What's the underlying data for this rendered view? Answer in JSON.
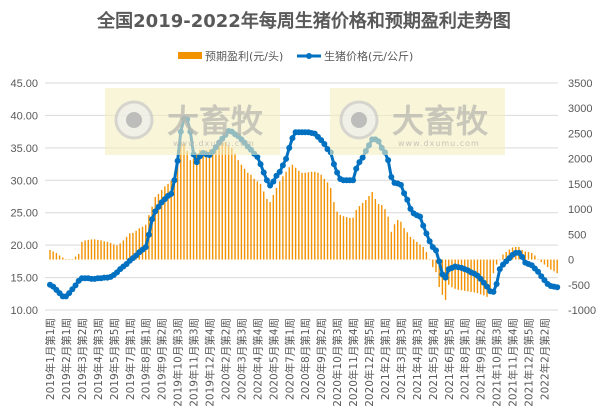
{
  "chart_data": {
    "type": "bar+line",
    "title": "全国2019-2022年每周生猪价格和预期盈利走势图",
    "legend_position": "top",
    "grid": true,
    "colors": {
      "profit_bar": "#F39200",
      "price_line": "#0070C0",
      "watermark_bg": "#F5EFC0"
    },
    "watermark": {
      "logo_text": "大畜牧",
      "url_text": "www.dxumu.com"
    },
    "y_left": {
      "ylim": [
        10,
        45
      ],
      "ticks": [
        "10.00",
        "15.00",
        "20.00",
        "25.00",
        "30.00",
        "35.00",
        "40.00",
        "45.00"
      ]
    },
    "y_right": {
      "ylim": [
        -1000,
        3500
      ],
      "ticks": [
        "-1000",
        "-500",
        "0",
        "500",
        "1000",
        "1500",
        "2000",
        "2500",
        "3000",
        "3500"
      ]
    },
    "x_tick_every": 5,
    "x_tick_labels": [
      "2019年1月第1周",
      "2019年2月第1周",
      "2019年3月第2周",
      "2019年4月第3周",
      "2019年5月第5周",
      "2019年7月第1周",
      "2019年8月第1周",
      "2019年9月第2周",
      "2019年10月第3周",
      "2019年11月第3周",
      "2019年12月第4周",
      "2020年2月第2周",
      "2020年3月第3周",
      "2020年4月第4周",
      "2020年5月第4周",
      "2020年7月第1周",
      "2020年8月第1周",
      "2020年9月第2周",
      "2020年10月第3周",
      "2020年11月第4周",
      "2020年12月第5周",
      "2021年2月第1周",
      "2021年3月第3周",
      "2021年4月第3周",
      "2021年5月第4周",
      "2021年6月第5周",
      "2021年8月第1周",
      "2021年9月第2周",
      "2021年10月第3周",
      "2021年11月第4周",
      "2021年12月第5周",
      "2022年2月第2周"
    ],
    "series": [
      {
        "name": "预期盈利(元/头)",
        "type": "bar",
        "axis": "right",
        "values": [
          190,
          160,
          130,
          80,
          40,
          10,
          10,
          10,
          60,
          110,
          350,
          380,
          390,
          400,
          400,
          390,
          380,
          360,
          350,
          330,
          300,
          280,
          320,
          380,
          450,
          520,
          530,
          570,
          620,
          650,
          690,
          880,
          1050,
          1240,
          1300,
          1380,
          1450,
          1500,
          1560,
          1580,
          2170,
          2410,
          2300,
          2150,
          1970,
          2000,
          2100,
          2170,
          2170,
          2170,
          2180,
          2200,
          2250,
          2310,
          2330,
          2330,
          2250,
          2210,
          2100,
          1970,
          1880,
          1800,
          1720,
          1680,
          1600,
          1550,
          1500,
          1350,
          1200,
          1140,
          1280,
          1420,
          1550,
          1650,
          1740,
          1830,
          1880,
          1820,
          1760,
          1720,
          1720,
          1730,
          1740,
          1740,
          1720,
          1680,
          1600,
          1530,
          1420,
          1140,
          950,
          885,
          860,
          840,
          825,
          830,
          985,
          1060,
          1120,
          1180,
          1260,
          1340,
          1200,
          1100,
          1080,
          1000,
          850,
          550,
          700,
          785,
          750,
          625,
          540,
          450,
          400,
          350,
          300,
          250,
          150,
          0,
          -150,
          -250,
          -545,
          -700,
          -800,
          -500,
          -550,
          -580,
          -600,
          -610,
          -620,
          -630,
          -640,
          -650,
          -665,
          -690,
          -710,
          -740,
          -600,
          -270,
          -100,
          0,
          100,
          150,
          200,
          240,
          250,
          250,
          190,
          160,
          150,
          130,
          80,
          0,
          -50,
          -100,
          -150,
          -200,
          -230,
          -270
        ]
      },
      {
        "name": "生猪价格(元/公斤)",
        "type": "line",
        "axis": "left",
        "values": [
          13.9,
          13.6,
          13.1,
          12.6,
          12.1,
          12.1,
          12.6,
          13.2,
          13.8,
          14.5,
          14.9,
          14.9,
          14.9,
          14.8,
          14.8,
          14.9,
          14.9,
          15.0,
          15.0,
          15.1,
          15.4,
          15.8,
          16.3,
          16.7,
          17.1,
          17.6,
          18.0,
          18.4,
          18.9,
          19.3,
          19.7,
          21.6,
          24.0,
          25.2,
          25.9,
          26.6,
          27.1,
          27.6,
          27.9,
          30.0,
          33.0,
          37.5,
          39.5,
          39.4,
          37.5,
          34.0,
          32.8,
          33.7,
          34.2,
          34.0,
          33.9,
          34.4,
          35.1,
          35.8,
          36.4,
          37.0,
          37.6,
          37.5,
          37.1,
          36.8,
          36.3,
          35.8,
          35.2,
          34.7,
          34.1,
          33.6,
          32.5,
          31.2,
          30.0,
          29.2,
          29.8,
          30.7,
          31.3,
          32.3,
          33.3,
          35.0,
          36.5,
          37.4,
          37.4,
          37.4,
          37.4,
          37.4,
          37.3,
          37.2,
          36.7,
          36.2,
          35.6,
          34.8,
          34.3,
          32.5,
          31.2,
          30.2,
          30.0,
          30.0,
          30.0,
          30.0,
          31.8,
          32.8,
          33.5,
          34.5,
          35.4,
          36.3,
          36.3,
          36.0,
          35.0,
          34.3,
          33.1,
          30.5,
          29.6,
          29.5,
          29.3,
          28.0,
          27.0,
          25.6,
          24.9,
          24.6,
          24.4,
          23.0,
          21.8,
          20.6,
          19.7,
          19.2,
          17.5,
          15.5,
          15.0,
          16.3,
          16.5,
          16.7,
          16.6,
          16.5,
          16.3,
          16.1,
          15.8,
          15.6,
          15.3,
          14.8,
          14.2,
          13.6,
          12.9,
          12.8,
          14.0,
          16.3,
          17.0,
          17.5,
          18.0,
          18.5,
          18.8,
          18.8,
          18.2,
          17.3,
          17.1,
          16.9,
          16.4,
          15.9,
          15.2,
          14.6,
          14.0,
          13.7,
          13.6,
          13.5
        ]
      }
    ]
  }
}
